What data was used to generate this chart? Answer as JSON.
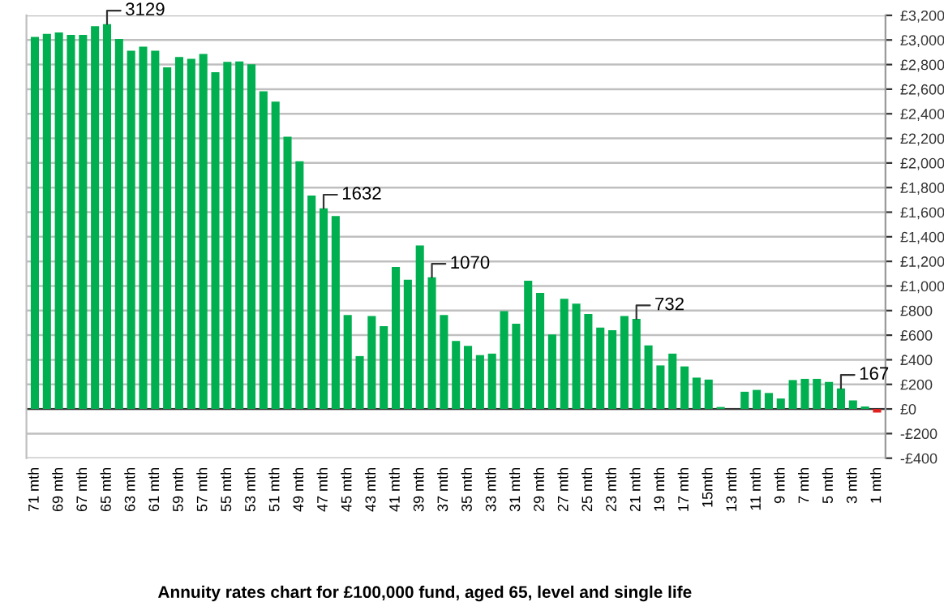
{
  "chart_data": {
    "type": "bar",
    "title": "Annuity rates chart for £100,000 fund, aged 65, level and single life",
    "categories": [
      "71 mth",
      null,
      "69 mth",
      null,
      "67 mth",
      null,
      "65 mth",
      null,
      "63 mth",
      null,
      "61 mth",
      null,
      "59 mth",
      null,
      "57 mth",
      null,
      "55 mth",
      null,
      "53 mth",
      null,
      "51 mth",
      null,
      "49 mth",
      null,
      "47 mth",
      null,
      "45 mth",
      null,
      "43 mth",
      null,
      "41 mth",
      null,
      "39 mth",
      null,
      "37 mth",
      null,
      "35 mth",
      null,
      "33 mth",
      null,
      "31 mth",
      null,
      "29 mth",
      null,
      "27 mth",
      null,
      "25 mth",
      null,
      "23 mth",
      null,
      "21 mth",
      null,
      "19 mth",
      null,
      "17 mth",
      null,
      "15mth",
      null,
      "13 mth",
      null,
      "11 mth",
      null,
      "9 mth",
      null,
      "7 mth",
      null,
      "5 mth",
      null,
      "3 mth",
      null,
      "1 mth"
    ],
    "values": [
      3025,
      3049,
      3061,
      3041,
      3041,
      3112,
      3129,
      3009,
      2913,
      2945,
      2913,
      2778,
      2862,
      2846,
      2886,
      2738,
      2822,
      2826,
      2802,
      2583,
      2499,
      2213,
      2014,
      1735,
      1632,
      1568,
      764,
      430,
      756,
      673,
      1154,
      1051,
      1329,
      1070,
      764,
      553,
      513,
      438,
      450,
      796,
      693,
      1043,
      943,
      605,
      896,
      856,
      772,
      661,
      641,
      756,
      732,
      517,
      354,
      450,
      346,
      255,
      239,
      16,
      0,
      140,
      155,
      130,
      85,
      235,
      245,
      245,
      220,
      167,
      70,
      20,
      -30
    ],
    "value_labels": [
      null,
      null,
      null,
      null,
      null,
      null,
      "3129",
      null,
      null,
      null,
      null,
      null,
      null,
      null,
      null,
      null,
      null,
      null,
      null,
      null,
      null,
      null,
      null,
      null,
      "1632",
      null,
      null,
      null,
      null,
      null,
      null,
      null,
      null,
      "1070",
      null,
      null,
      null,
      null,
      null,
      null,
      null,
      null,
      null,
      null,
      null,
      null,
      null,
      null,
      null,
      null,
      "732",
      null,
      null,
      null,
      null,
      null,
      null,
      null,
      null,
      null,
      null,
      null,
      null,
      null,
      null,
      null,
      null,
      "167",
      null,
      null,
      null
    ],
    "colors": [
      "#00b050",
      "#00b050",
      "#00b050",
      "#00b050",
      "#00b050",
      "#00b050",
      "#00b050",
      "#00b050",
      "#00b050",
      "#00b050",
      "#00b050",
      "#00b050",
      "#00b050",
      "#00b050",
      "#00b050",
      "#00b050",
      "#00b050",
      "#00b050",
      "#00b050",
      "#00b050",
      "#00b050",
      "#00b050",
      "#00b050",
      "#00b050",
      "#00b050",
      "#00b050",
      "#00b050",
      "#00b050",
      "#00b050",
      "#00b050",
      "#00b050",
      "#00b050",
      "#00b050",
      "#00b050",
      "#00b050",
      "#00b050",
      "#00b050",
      "#00b050",
      "#00b050",
      "#00b050",
      "#00b050",
      "#00b050",
      "#00b050",
      "#00b050",
      "#00b050",
      "#00b050",
      "#00b050",
      "#00b050",
      "#00b050",
      "#00b050",
      "#00b050",
      "#00b050",
      "#00b050",
      "#00b050",
      "#00b050",
      "#00b050",
      "#00b050",
      "#00b050",
      "#00b050",
      "#00b050",
      "#00b050",
      "#00b050",
      "#00b050",
      "#00b050",
      "#00b050",
      "#00b050",
      "#00b050",
      "#00b050",
      "#00b050",
      "#00b050",
      "#e02020"
    ],
    "ylim": [
      -400,
      3200
    ],
    "yticks": [
      {
        "value": -400,
        "label": "-£400"
      },
      {
        "value": -200,
        "label": "-£200"
      },
      {
        "value": 0,
        "label": "£0"
      },
      {
        "value": 200,
        "label": "£200"
      },
      {
        "value": 400,
        "label": "£400"
      },
      {
        "value": 600,
        "label": "£600"
      },
      {
        "value": 800,
        "label": "£800"
      },
      {
        "value": 1000,
        "label": "£1,000"
      },
      {
        "value": 1200,
        "label": "£1,200"
      },
      {
        "value": 1400,
        "label": "£1,400"
      },
      {
        "value": 1600,
        "label": "£1,600"
      },
      {
        "value": 1800,
        "label": "£1,800"
      },
      {
        "value": 2000,
        "label": "£2,000"
      },
      {
        "value": 2200,
        "label": "£2,200"
      },
      {
        "value": 2400,
        "label": "£2,400"
      },
      {
        "value": 2600,
        "label": "£2,600"
      },
      {
        "value": 2800,
        "label": "£2,800"
      },
      {
        "value": 3000,
        "label": "£3,000"
      },
      {
        "value": 3200,
        "label": "£3,200"
      }
    ],
    "grid": "y",
    "legend": false
  }
}
